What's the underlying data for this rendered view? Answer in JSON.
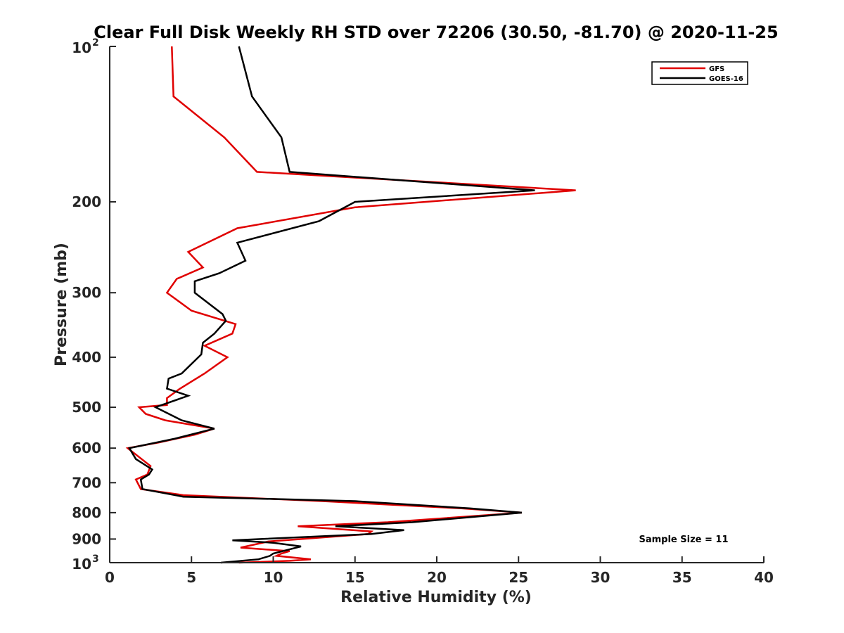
{
  "chart_data": {
    "type": "line",
    "title": "Clear Full Disk Weekly RH STD over 72206 (30.50, -81.70) @ 2020-11-25",
    "xlabel": "Relative Humidity (%)",
    "ylabel": "Pressure (mb)",
    "xlim": [
      0,
      40
    ],
    "ylim": [
      100,
      1000
    ],
    "y_scale": "log",
    "y_reversed": true,
    "x_ticks": [
      "0",
      "5",
      "10",
      "15",
      "20",
      "25",
      "30",
      "35",
      "40"
    ],
    "y_ticks": [
      {
        "value": 100,
        "base": "10",
        "exp": "2"
      },
      {
        "value": 200,
        "label": "200"
      },
      {
        "value": 300,
        "label": "300"
      },
      {
        "value": 400,
        "label": "400"
      },
      {
        "value": 500,
        "label": "500"
      },
      {
        "value": 600,
        "label": "600"
      },
      {
        "value": 700,
        "label": "700"
      },
      {
        "value": 800,
        "label": "800"
      },
      {
        "value": 900,
        "label": "900"
      },
      {
        "value": 1000,
        "base": "10",
        "exp": "3"
      }
    ],
    "legend_position": "top-right",
    "grid": false,
    "series": [
      {
        "name": "GFS",
        "color": "#e00000",
        "points": [
          [
            3.8,
            100
          ],
          [
            3.9,
            125
          ],
          [
            7.0,
            150
          ],
          [
            9.0,
            175
          ],
          [
            28.5,
            190
          ],
          [
            15.0,
            205
          ],
          [
            7.8,
            225
          ],
          [
            4.8,
            250
          ],
          [
            5.7,
            268
          ],
          [
            4.1,
            282
          ],
          [
            3.5,
            300
          ],
          [
            5.0,
            325
          ],
          [
            7.7,
            345
          ],
          [
            7.5,
            360
          ],
          [
            5.8,
            380
          ],
          [
            7.2,
            400
          ],
          [
            5.8,
            430
          ],
          [
            4.3,
            460
          ],
          [
            3.5,
            480
          ],
          [
            3.5,
            495
          ],
          [
            1.8,
            500
          ],
          [
            2.2,
            515
          ],
          [
            3.4,
            530
          ],
          [
            6.4,
            550
          ],
          [
            5.2,
            565
          ],
          [
            3.0,
            585
          ],
          [
            1.1,
            600
          ],
          [
            2.5,
            650
          ],
          [
            2.3,
            675
          ],
          [
            1.6,
            690
          ],
          [
            1.9,
            720
          ],
          [
            4.5,
            740
          ],
          [
            13.0,
            760
          ],
          [
            21.5,
            785
          ],
          [
            25.2,
            800
          ],
          [
            17.0,
            835
          ],
          [
            11.5,
            850
          ],
          [
            16.0,
            870
          ],
          [
            15.8,
            880
          ],
          [
            9.7,
            910
          ],
          [
            8.0,
            935
          ],
          [
            11.0,
            950
          ],
          [
            10.5,
            960
          ],
          [
            10.2,
            970
          ],
          [
            12.3,
            985
          ],
          [
            11.0,
            992
          ],
          [
            7.9,
            1000
          ]
        ]
      },
      {
        "name": "GOES-16",
        "color": "#000000",
        "points": [
          [
            7.9,
            100
          ],
          [
            8.7,
            125
          ],
          [
            10.5,
            150
          ],
          [
            11.0,
            175
          ],
          [
            26.0,
            190
          ],
          [
            15.0,
            200
          ],
          [
            12.8,
            218
          ],
          [
            7.8,
            240
          ],
          [
            8.3,
            260
          ],
          [
            6.7,
            275
          ],
          [
            5.2,
            285
          ],
          [
            5.2,
            300
          ],
          [
            6.9,
            330
          ],
          [
            7.1,
            340
          ],
          [
            6.4,
            360
          ],
          [
            5.7,
            375
          ],
          [
            5.6,
            395
          ],
          [
            4.4,
            430
          ],
          [
            3.6,
            440
          ],
          [
            3.5,
            460
          ],
          [
            4.8,
            475
          ],
          [
            2.8,
            500
          ],
          [
            4.4,
            530
          ],
          [
            6.4,
            550
          ],
          [
            4.0,
            575
          ],
          [
            1.2,
            600
          ],
          [
            1.6,
            630
          ],
          [
            2.6,
            660
          ],
          [
            2.4,
            675
          ],
          [
            1.9,
            690
          ],
          [
            2.0,
            720
          ],
          [
            4.5,
            745
          ],
          [
            15.0,
            760
          ],
          [
            22.0,
            785
          ],
          [
            25.2,
            800
          ],
          [
            18.5,
            835
          ],
          [
            13.8,
            850
          ],
          [
            18.0,
            865
          ],
          [
            16.0,
            880
          ],
          [
            7.5,
            905
          ],
          [
            10.0,
            915
          ],
          [
            11.7,
            930
          ],
          [
            10.0,
            960
          ],
          [
            9.8,
            970
          ],
          [
            9.1,
            985
          ],
          [
            6.8,
            1000
          ]
        ]
      }
    ],
    "annotations": [
      "Sample Size = 11"
    ]
  }
}
